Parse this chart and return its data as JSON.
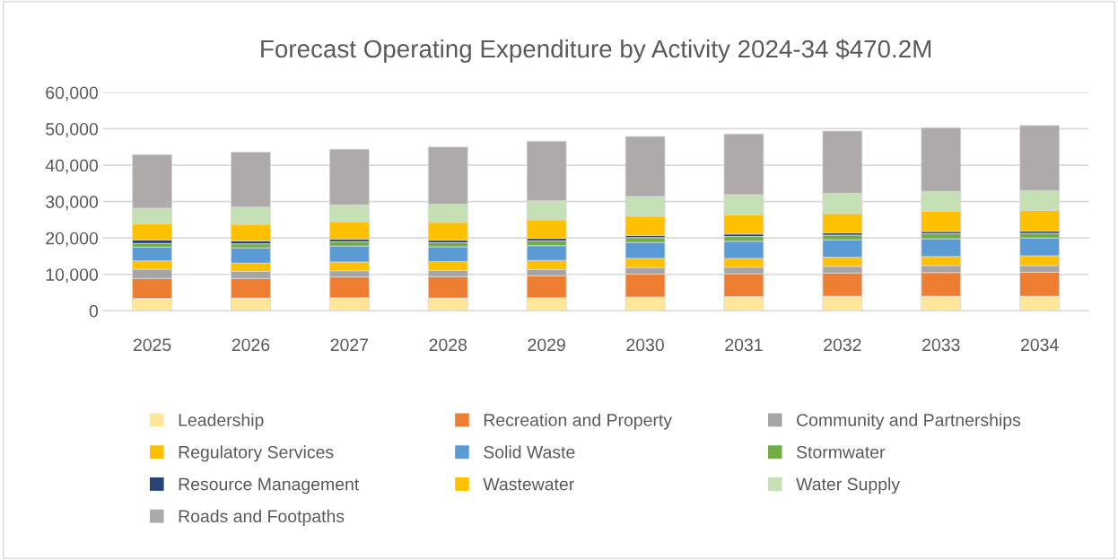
{
  "chart_data": {
    "type": "bar",
    "stacked": true,
    "title": "Forecast Operating Expenditure by Activity 2024-34 $470.2M",
    "categories": [
      "2025",
      "2026",
      "2027",
      "2028",
      "2029",
      "2030",
      "2031",
      "2032",
      "2033",
      "2034"
    ],
    "series": [
      {
        "name": "Leadership",
        "color": "#ffe699",
        "values": [
          3400,
          3500,
          3600,
          3500,
          3600,
          3800,
          3900,
          4000,
          4000,
          4000
        ]
      },
      {
        "name": "Recreation and Property",
        "color": "#ed7d31",
        "values": [
          5500,
          5400,
          5700,
          5900,
          6000,
          6300,
          6300,
          6400,
          6500,
          6600
        ]
      },
      {
        "name": "Community and Partnerships",
        "color": "#a5a5a5",
        "values": [
          2500,
          1900,
          1700,
          1700,
          1700,
          1700,
          1800,
          1800,
          1900,
          1800
        ]
      },
      {
        "name": "Regulatory Services",
        "color": "#ffc000",
        "values": [
          2300,
          2300,
          2400,
          2400,
          2500,
          2600,
          2400,
          2500,
          2500,
          2700
        ]
      },
      {
        "name": "Solid Waste",
        "color": "#5b9bd5",
        "values": [
          3800,
          4200,
          4400,
          4100,
          4100,
          4400,
          4700,
          4800,
          4900,
          4900
        ]
      },
      {
        "name": "Stormwater",
        "color": "#70ad47",
        "values": [
          1000,
          1100,
          1200,
          1100,
          1300,
          1300,
          1300,
          1300,
          1400,
          1300
        ]
      },
      {
        "name": "Resource Management",
        "color": "#264478",
        "values": [
          1000,
          800,
          700,
          700,
          700,
          600,
          700,
          600,
          600,
          600
        ]
      },
      {
        "name": "Wastewater",
        "color": "#ffc000",
        "values": [
          4400,
          4600,
          4800,
          4900,
          5100,
          5300,
          5300,
          5300,
          5600,
          5700
        ]
      },
      {
        "name": "Water Supply",
        "color": "#c5e0b4",
        "values": [
          4300,
          4700,
          4600,
          5000,
          5200,
          5400,
          5500,
          5600,
          5400,
          5400
        ]
      },
      {
        "name": "Roads and Footpaths",
        "color": "#aeaaaa",
        "values": [
          14700,
          15100,
          15300,
          15700,
          16400,
          16500,
          16700,
          17100,
          17500,
          17900
        ]
      }
    ],
    "ylim": [
      0,
      60000
    ],
    "yticks": [
      0,
      {
        "value": 10000,
        "label": "10,000"
      },
      {
        "value": 20000,
        "label": "20,000"
      },
      {
        "value": 30000,
        "label": "30,000"
      },
      {
        "value": 40000,
        "label": "40,000"
      },
      {
        "value": 50000,
        "label": "50,000"
      },
      {
        "value": 60000,
        "label": "60,000"
      }
    ],
    "grid": "y",
    "legend": "bottom"
  }
}
